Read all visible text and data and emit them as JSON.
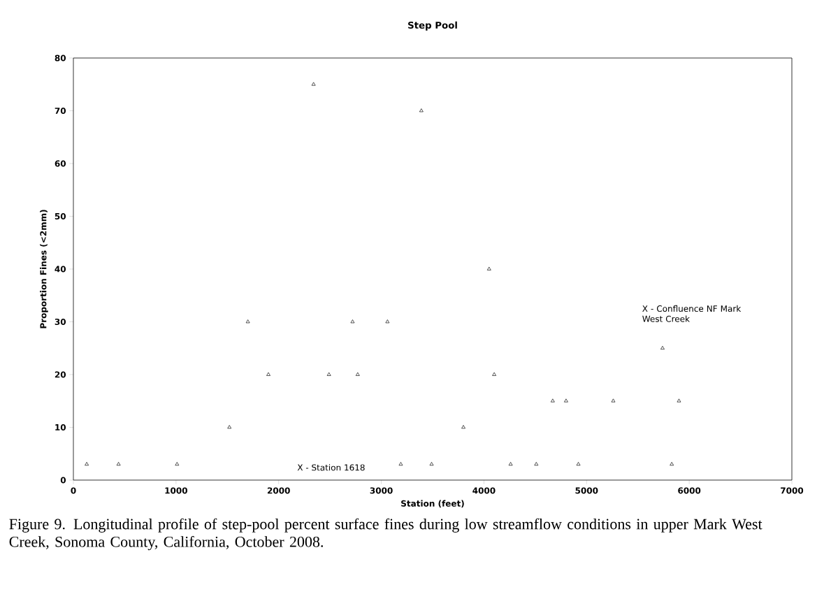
{
  "chart_data": {
    "type": "scatter",
    "title": "Step Pool",
    "xlabel": "Station (feet)",
    "ylabel": "Proportion Fines (<2mm)",
    "x": [
      130,
      440,
      1010,
      1520,
      1700,
      1900,
      2340,
      2490,
      2720,
      2770,
      3060,
      3190,
      3390,
      3490,
      3800,
      4050,
      4100,
      4260,
      4510,
      4670,
      4800,
      4920,
      5260,
      5740,
      5830,
      5900
    ],
    "values": [
      3,
      3,
      3,
      10,
      30,
      20,
      75,
      20,
      30,
      20,
      30,
      3,
      70,
      3,
      10,
      40,
      20,
      3,
      3,
      15,
      15,
      3,
      15,
      25,
      3,
      15
    ],
    "color": "#000000",
    "marker": "triangle",
    "xlim": [
      0,
      7000
    ],
    "ylim": [
      0,
      80
    ],
    "xticks": [
      0,
      1000,
      2000,
      3000,
      4000,
      5000,
      6000,
      7000
    ],
    "yticks": [
      0,
      10,
      20,
      30,
      40,
      50,
      60,
      70,
      80
    ],
    "annotations": [
      "X - Station 1618",
      "X - Confluence NF Mark West Creek",
      "Figure 9.  Longitudinal profile of step-pool percent surface fines during low streamflow conditions in upper Mark West Creek, Sonoma County, California, October 2008."
    ]
  }
}
